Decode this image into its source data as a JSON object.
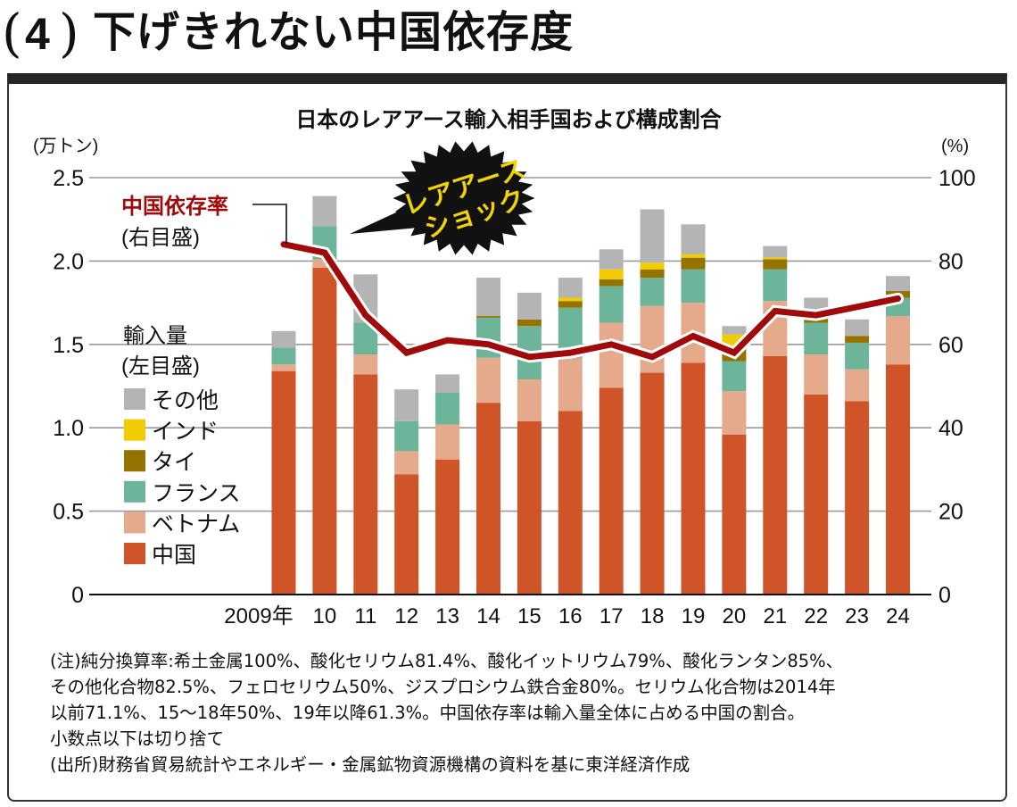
{
  "header": {
    "badge_number": "4",
    "headline": "下げきれない中国依存度"
  },
  "chart_data": {
    "type": "bar",
    "stacked": true,
    "secondary_type": "line",
    "title": "日本のレアアース輸入相手国および構成割合",
    "categories": [
      "2009年",
      "10",
      "11",
      "12",
      "13",
      "14",
      "15",
      "16",
      "17",
      "18",
      "19",
      "20",
      "21",
      "22",
      "23",
      "24"
    ],
    "ylabel": "(万トン)",
    "y2label": "(%)",
    "ylim": [
      0,
      2.5
    ],
    "y2lim": [
      0,
      100
    ],
    "yticks": [
      "0",
      "0.5",
      "1.0",
      "1.5",
      "2.0",
      "2.5"
    ],
    "y2ticks": [
      "0",
      "20",
      "40",
      "60",
      "80",
      "100"
    ],
    "grid": true,
    "legend_title": "輸入量",
    "legend_subtitle": "(左目盛)",
    "legend_position": "left",
    "series": [
      {
        "name": "中国",
        "color": "#cf5428",
        "values": [
          1.34,
          1.96,
          1.32,
          0.72,
          0.81,
          1.15,
          1.04,
          1.1,
          1.24,
          1.33,
          1.39,
          0.96,
          1.43,
          1.2,
          1.16,
          1.38
        ]
      },
      {
        "name": "ベトナム",
        "color": "#e5a98c",
        "values": [
          0.04,
          0.05,
          0.12,
          0.14,
          0.21,
          0.27,
          0.25,
          0.32,
          0.39,
          0.4,
          0.36,
          0.26,
          0.33,
          0.24,
          0.19,
          0.29
        ]
      },
      {
        "name": "フランス",
        "color": "#6cb59a",
        "values": [
          0.1,
          0.2,
          0.19,
          0.18,
          0.19,
          0.24,
          0.32,
          0.3,
          0.22,
          0.17,
          0.2,
          0.18,
          0.19,
          0.19,
          0.16,
          0.11
        ]
      },
      {
        "name": "タイ",
        "color": "#957300",
        "values": [
          0,
          0,
          0,
          0,
          0,
          0.01,
          0.04,
          0.04,
          0.04,
          0.05,
          0.07,
          0.09,
          0.06,
          0.03,
          0.04,
          0.04
        ]
      },
      {
        "name": "インド",
        "color": "#f2cc00",
        "values": [
          0,
          0,
          0,
          0,
          0,
          0,
          0,
          0.02,
          0.06,
          0.04,
          0.02,
          0.07,
          0.01,
          0,
          0,
          0
        ]
      },
      {
        "name": "その他",
        "color": "#b4b4b4",
        "values": [
          0.1,
          0.18,
          0.29,
          0.19,
          0.11,
          0.23,
          0.16,
          0.12,
          0.12,
          0.32,
          0.18,
          0.05,
          0.07,
          0.12,
          0.1,
          0.09
        ]
      }
    ],
    "line_series": {
      "name": "中国依存率",
      "subtitle": "(右目盛)",
      "color": "#a00a0a",
      "values": [
        84,
        82,
        67,
        58,
        61,
        60,
        57,
        58,
        60,
        57,
        62,
        58,
        68,
        67,
        69,
        71
      ]
    },
    "annotation": {
      "line1": "レアアース",
      "line2": "ショック",
      "text_color": "#f2d400",
      "fill_color": "#111111"
    }
  },
  "notes": {
    "lines": [
      "(注)純分換算率:希土金属100%、酸化セリウム81.4%、酸化イットリウム79%、酸化ランタン85%、",
      "その他化合物82.5%、フェロセリウム50%、ジスプロシウム鉄合金80%。セリウム化合物は2014年",
      "以前71.1%、15〜18年50%、19年以降61.3%。中国依存率は輸入量全体に占める中国の割合。",
      "小数点以下は切り捨て",
      "(出所)財務省貿易統計やエネルギー・金属鉱物資源機構の資料を基に東洋経済作成"
    ]
  }
}
